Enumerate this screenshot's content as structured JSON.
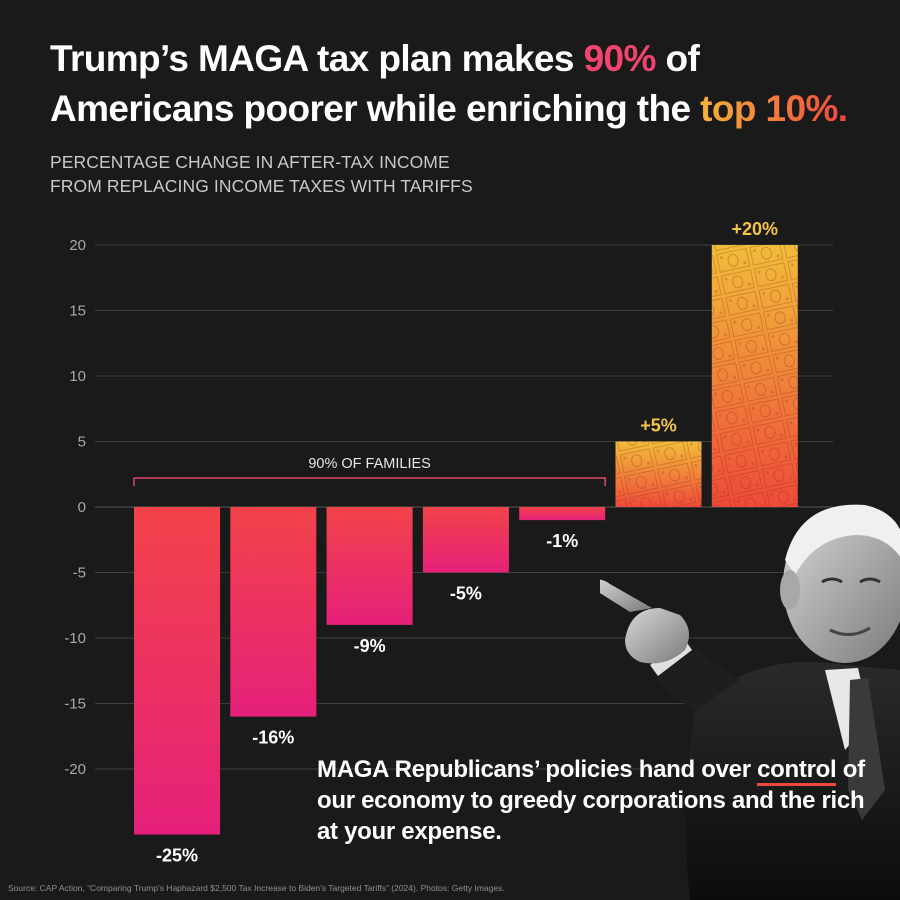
{
  "headline": {
    "part1": "Trump’s MAGA tax plan makes ",
    "highlight1": "90%",
    "part2": " of Americans poorer while enriching the ",
    "highlight2": "top 10%."
  },
  "subtitle": {
    "line1": "PERCENTAGE CHANGE IN AFTER-TAX INCOME",
    "line2": "FROM REPLACING INCOME TAXES WITH TARIFFS"
  },
  "chart_data": {
    "type": "bar",
    "title": "PERCENTAGE CHANGE IN AFTER-TAX INCOME FROM REPLACING INCOME TAXES WITH TARIFFS",
    "values": [
      -25,
      -16,
      -9,
      -5,
      -1,
      5,
      20
    ],
    "data_labels": [
      "-25%",
      "-16%",
      "-9%",
      "-5%",
      "-1%",
      "+5%",
      "+20%"
    ],
    "y_ticks": [
      20,
      15,
      10,
      5,
      0,
      -5,
      -10,
      -15,
      -20
    ],
    "y_tick_labels": [
      "20",
      "15",
      "10",
      "5",
      "0",
      "-5",
      "-10",
      "-15",
      "-20"
    ],
    "ylim": [
      -25,
      20
    ],
    "grid": true,
    "bracket_label": "90% OF FAMILIES",
    "bracket_span": [
      0,
      4
    ],
    "colors": {
      "negative_top": "#f2434a",
      "negative_bottom": "#e6207a",
      "positive_top": "#f2bd3a",
      "positive_bottom": "#ef4a3a",
      "negative_label": "#ffffff",
      "positive_label": "#f4c542",
      "grid": "#4a4a4a",
      "bracket": "#e0466b"
    }
  },
  "message": {
    "part1": "MAGA Republicans’ policies hand over ",
    "underlined": "control",
    "part2": " of our economy to greedy corporations and the rich at your expense."
  },
  "source": "Source: CAP Action, “Comparing Trump's Haphazard $2,500 Tax Increase to Biden's Targeted Tariffs” (2024). Photos: Getty Images.",
  "photo_description": "pointing-man-photo"
}
